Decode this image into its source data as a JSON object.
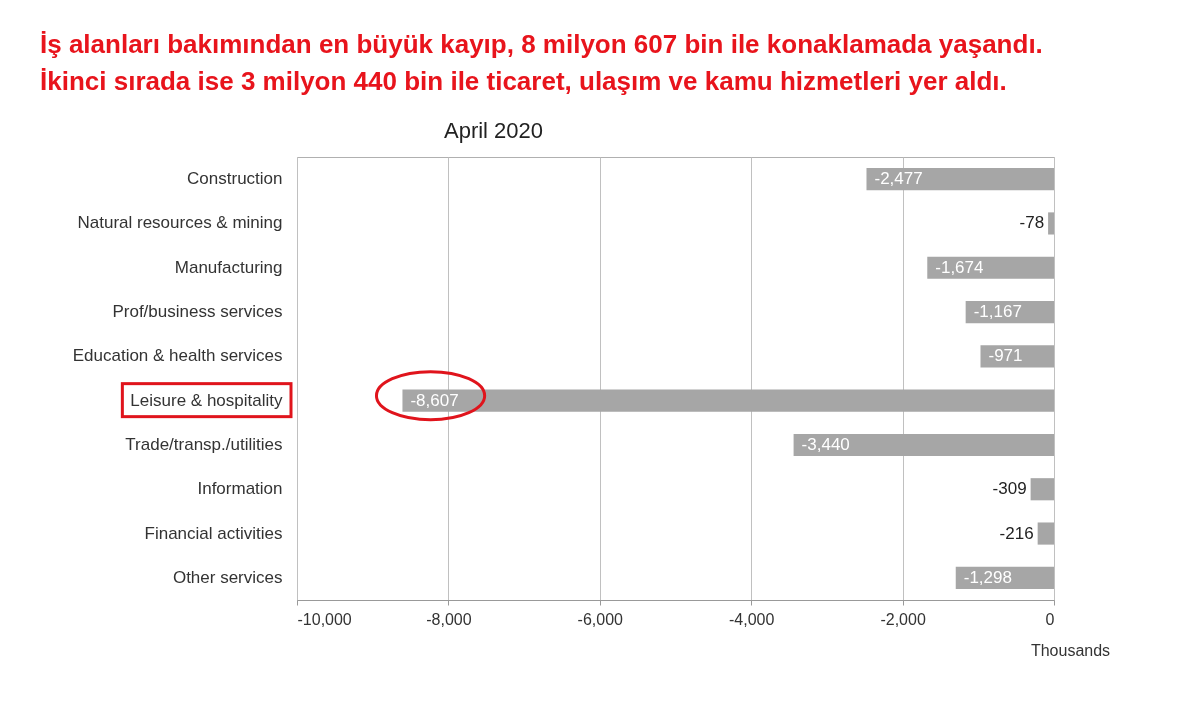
{
  "chart_data": {
    "type": "bar",
    "orientation": "horizontal",
    "title": "İş alanları bakımından en büyük kayıp, 8 milyon 607 bin ile konaklamada yaşandı.\nİkinci sırada ise 3 milyon 440 bin ile ticaret, ulaşım ve kamu hizmetleri yer aldı.",
    "subtitle": "April 2020",
    "xlabel": "Thousands",
    "categories": [
      "Construction",
      "Natural resources & mining",
      "Manufacturing",
      "Prof/business services",
      "Education & health services",
      "Leisure & hospitality",
      "Trade/transp./utilities",
      "Information",
      "Financial activities",
      "Other services"
    ],
    "values": [
      -2477,
      -78,
      -1674,
      -1167,
      -971,
      -8607,
      -3440,
      -309,
      -216,
      -1298
    ],
    "value_labels": [
      "-2,477",
      "-78",
      "-1,674",
      "-1,167",
      "-971",
      "-8,607",
      "-3,440",
      "-309",
      "-216",
      "-1,298"
    ],
    "color": "#a6a6a6",
    "grid": "x",
    "xlim": [
      -10000,
      0
    ],
    "xticks": [
      {
        "value": -10000,
        "label": "-10,000"
      },
      {
        "value": -8000,
        "label": "-8,000"
      },
      {
        "value": -6000,
        "label": "-6,000"
      },
      {
        "value": -4000,
        "label": "-4,000"
      },
      {
        "value": -2000,
        "label": "-2,000"
      },
      0
    ]
  }
}
